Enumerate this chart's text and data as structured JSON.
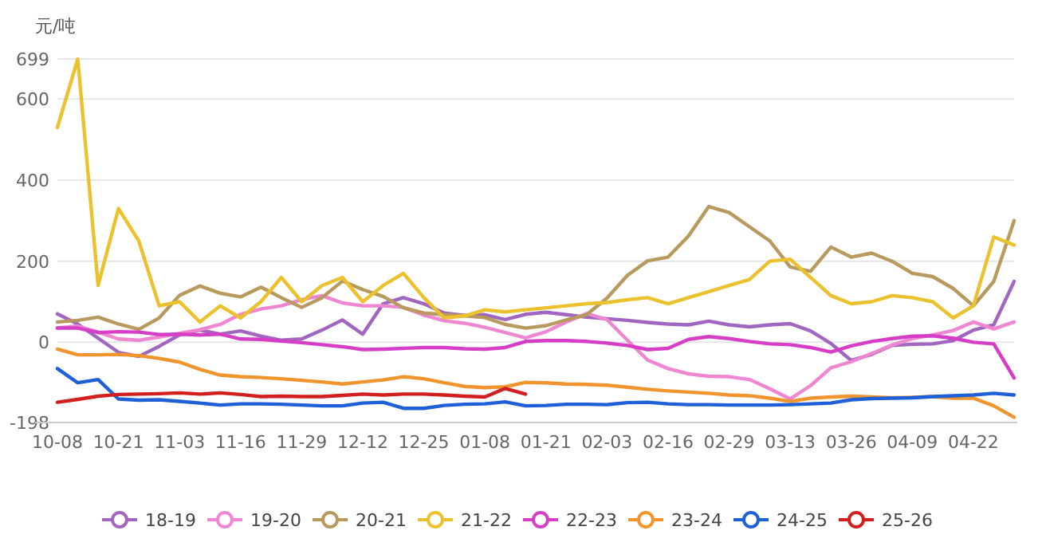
{
  "chart_data": {
    "type": "line",
    "ylabel": "元/吨",
    "categories": [
      "10-08",
      null,
      null,
      "10-21",
      null,
      null,
      "11-03",
      null,
      null,
      "11-16",
      null,
      null,
      "11-29",
      null,
      null,
      "12-12",
      null,
      null,
      "12-25",
      null,
      null,
      "01-08",
      null,
      null,
      "01-21",
      null,
      null,
      "02-03",
      null,
      null,
      "02-16",
      null,
      null,
      "02-29",
      null,
      null,
      "03-13",
      null,
      null,
      "03-26",
      null,
      null,
      "04-09",
      null,
      null,
      "04-22",
      null,
      null
    ],
    "ylim": [
      -198,
      699
    ],
    "yticks": [
      -198,
      0,
      200,
      400,
      600,
      699
    ],
    "grid": "y",
    "legend": "bottom",
    "marker": "none",
    "line_style": "solid",
    "series": [
      {
        "name": "18-19",
        "color": "#a066c0",
        "values": [
          70,
          45,
          10,
          -25,
          -35,
          -10,
          18,
          30,
          20,
          28,
          15,
          5,
          8,
          30,
          55,
          20,
          95,
          110,
          95,
          72,
          66,
          68,
          56,
          69,
          74,
          68,
          62,
          58,
          54,
          49,
          45,
          43,
          52,
          43,
          38,
          43,
          46,
          28,
          -3,
          -45,
          -30,
          -8,
          -5,
          -4,
          4,
          30,
          43,
          150
        ]
      },
      {
        "name": "19-20",
        "color": "#ef86d2",
        "values": [
          35,
          40,
          25,
          8,
          5,
          13,
          22,
          31,
          44,
          69,
          82,
          90,
          105,
          115,
          97,
          90,
          90,
          86,
          67,
          53,
          47,
          37,
          24,
          11,
          26,
          50,
          71,
          56,
          5,
          -44,
          -65,
          -78,
          -84,
          -85,
          -92,
          -115,
          -140,
          -107,
          -63,
          -48,
          -28,
          -7,
          9,
          18,
          29,
          50,
          33,
          50
        ]
      },
      {
        "name": "20-21",
        "color": "#b89a5e",
        "values": [
          50,
          54,
          62,
          45,
          32,
          60,
          116,
          139,
          121,
          112,
          136,
          110,
          86,
          110,
          151,
          130,
          113,
          85,
          72,
          68,
          65,
          61,
          44,
          35,
          41,
          55,
          68,
          109,
          165,
          201,
          210,
          262,
          335,
          320,
          285,
          250,
          186,
          175,
          235,
          210,
          220,
          200,
          170,
          162,
          133,
          90,
          150,
          300
        ]
      },
      {
        "name": "21-22",
        "color": "#ebc22e",
        "values": [
          530,
          699,
          140,
          330,
          250,
          90,
          100,
          50,
          90,
          60,
          100,
          160,
          100,
          140,
          160,
          100,
          140,
          170,
          110,
          60,
          65,
          80,
          75,
          80,
          85,
          90,
          95,
          98,
          105,
          110,
          95,
          110,
          125,
          140,
          155,
          200,
          205,
          160,
          115,
          95,
          100,
          115,
          110,
          100,
          60,
          90,
          260,
          240
        ]
      },
      {
        "name": "22-23",
        "color": "#d63ec8",
        "values": [
          35,
          35,
          24,
          26,
          25,
          19,
          20,
          18,
          20,
          8,
          7,
          3,
          -1,
          -6,
          -11,
          -18,
          -17,
          -15,
          -13,
          -13,
          -16,
          -17,
          -13,
          2,
          4,
          4,
          2,
          -2,
          -8,
          -18,
          -15,
          7,
          14,
          9,
          2,
          -4,
          -6,
          -13,
          -24,
          -9,
          2,
          9,
          15,
          16,
          10,
          0,
          -4,
          -88
        ]
      },
      {
        "name": "23-24",
        "color": "#f0952e",
        "values": [
          -17,
          -31,
          -31,
          -30,
          -33,
          -40,
          -49,
          -67,
          -81,
          -85,
          -87,
          -90,
          -94,
          -98,
          -103,
          -98,
          -93,
          -85,
          -90,
          -100,
          -109,
          -112,
          -110,
          -99,
          -100,
          -103,
          -104,
          -106,
          -111,
          -116,
          -120,
          -123,
          -126,
          -130,
          -132,
          -138,
          -146,
          -138,
          -135,
          -133,
          -135,
          -137,
          -136,
          -134,
          -138,
          -138,
          -157,
          -185
        ]
      },
      {
        "name": "24-25",
        "color": "#1f5fd8",
        "values": [
          -65,
          -100,
          -92,
          -140,
          -143,
          -142,
          -146,
          -150,
          -155,
          -152,
          -152,
          -153,
          -155,
          -157,
          -157,
          -150,
          -148,
          -163,
          -163,
          -156,
          -153,
          -152,
          -147,
          -157,
          -156,
          -153,
          -153,
          -154,
          -149,
          -148,
          -152,
          -154,
          -154,
          -155,
          -155,
          -155,
          -154,
          -152,
          -150,
          -142,
          -139,
          -138,
          -137,
          -134,
          -132,
          -130,
          -126,
          -130
        ]
      },
      {
        "name": "25-26",
        "color": "#d21e1e",
        "values": [
          -148,
          -141,
          -133,
          -129,
          -128,
          -127,
          -125,
          -128,
          -125,
          -129,
          -134,
          -133,
          -134,
          -134,
          -131,
          -128,
          -130,
          -128,
          -128,
          -130,
          -133,
          -135,
          -114,
          -128,
          null,
          null,
          null,
          null,
          null,
          null,
          null,
          null,
          null,
          null,
          null,
          null,
          null,
          null,
          null,
          null,
          null,
          null,
          null,
          null,
          null,
          null,
          null,
          null
        ]
      }
    ]
  }
}
